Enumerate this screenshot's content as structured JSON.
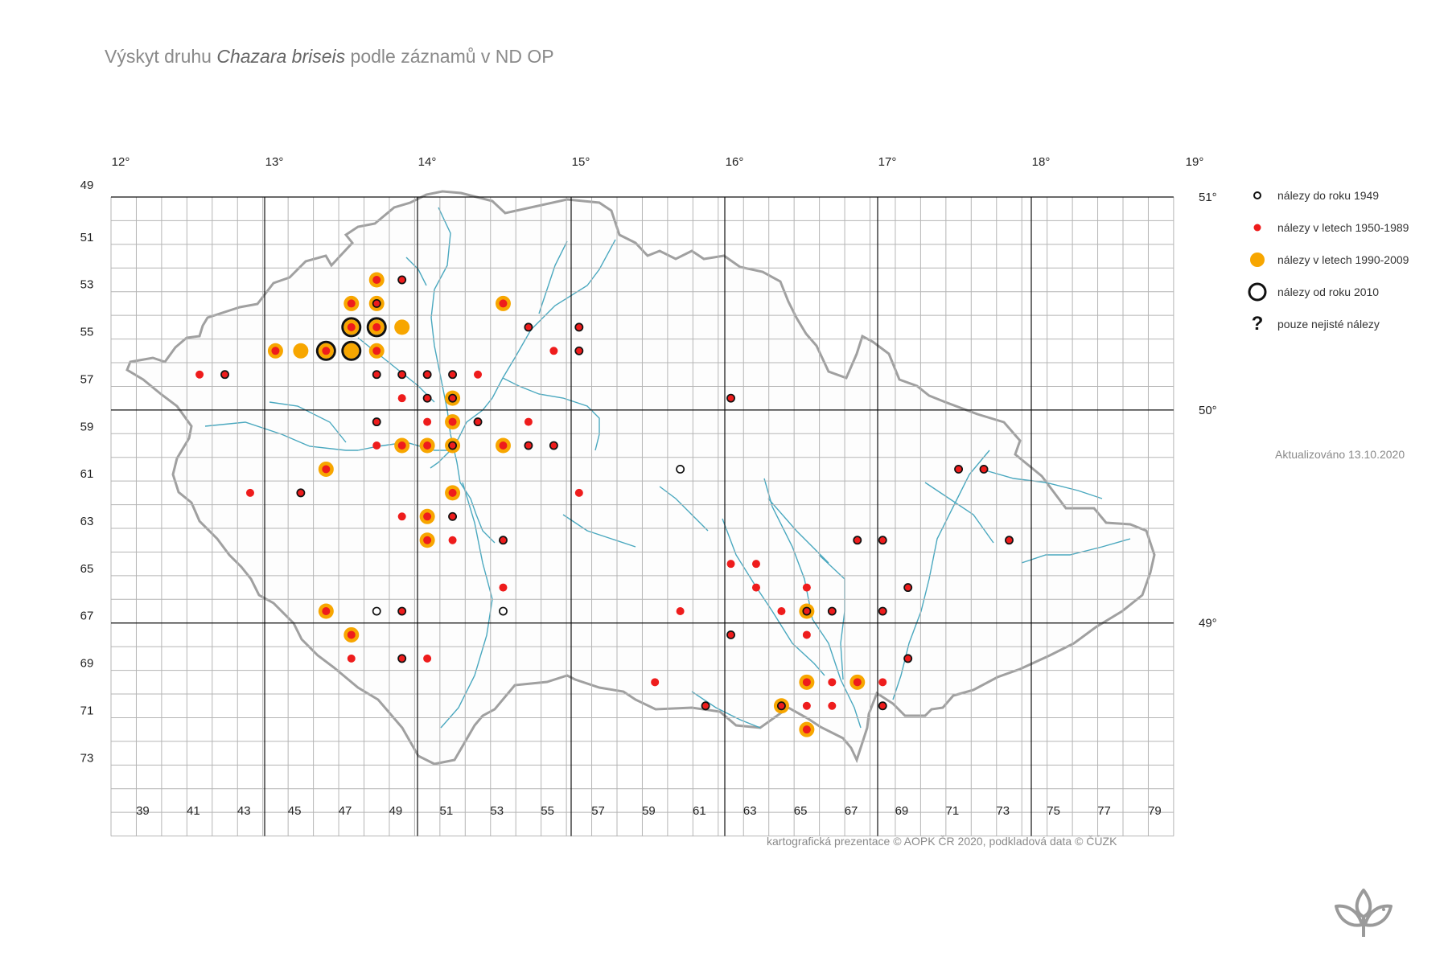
{
  "title": {
    "prefix": "Výskyt druhu ",
    "species": "Chazara briseis",
    "suffix": " podle záznamů v ND OP"
  },
  "longitude_labels": [
    "12°",
    "13°",
    "14°",
    "15°",
    "16°",
    "17°",
    "18°",
    "19°"
  ],
  "latitude_labels": [
    "51°",
    "50°",
    "49°"
  ],
  "grid_row_labels": [
    "49",
    "51",
    "53",
    "55",
    "57",
    "59",
    "61",
    "63",
    "65",
    "67",
    "69",
    "71",
    "73"
  ],
  "grid_col_labels": [
    "39",
    "41",
    "43",
    "45",
    "47",
    "49",
    "51",
    "53",
    "55",
    "57",
    "59",
    "61",
    "63",
    "65",
    "67",
    "69",
    "71",
    "73",
    "75",
    "77",
    "79"
  ],
  "legend": [
    {
      "symbol": "hollow-small",
      "label": "nálezy do roku 1949"
    },
    {
      "symbol": "red-dot",
      "label": "nálezy v letech 1950-1989"
    },
    {
      "symbol": "orange-dot",
      "label": "nálezy v letech 1990-2009"
    },
    {
      "symbol": "black-ring",
      "label": "nálezy od roku 2010"
    },
    {
      "symbol": "question",
      "label": "pouze nejisté nálezy"
    }
  ],
  "updated": "Aktualizováno 13.10.2020",
  "credit": "kartografická prezentace © AOPK ČR 2020, podkladová data © ČÚZK",
  "colors": {
    "red": "#ee1c1c",
    "orange": "#f7a600",
    "black": "#111111",
    "grid": "#b5b5b5",
    "river": "#4aa8bf",
    "border": "#a0a0a0"
  },
  "records": [
    {
      "grid": "4852",
      "periods": [
        "1990-2009",
        "1950-1989"
      ]
    },
    {
      "grid": "4952",
      "periods": [
        "1950-1989",
        "pre-1949"
      ]
    },
    {
      "grid": "4753",
      "periods": [
        "1990-2009",
        "1950-1989"
      ]
    },
    {
      "grid": "4853",
      "periods": [
        "1990-2009",
        "1950-1989",
        "pre-1949"
      ]
    },
    {
      "grid": "5353",
      "periods": [
        "1990-2009",
        "1950-1989"
      ]
    },
    {
      "grid": "4754",
      "periods": [
        "2010+",
        "1990-2009",
        "1950-1989"
      ]
    },
    {
      "grid": "4854",
      "periods": [
        "2010+",
        "1990-2009",
        "1950-1989"
      ]
    },
    {
      "grid": "4954",
      "periods": [
        "1990-2009"
      ]
    },
    {
      "grid": "5454",
      "periods": [
        "1950-1989",
        "pre-1949"
      ]
    },
    {
      "grid": "5654",
      "periods": [
        "1950-1989",
        "pre-1949"
      ]
    },
    {
      "grid": "4455",
      "periods": [
        "1990-2009",
        "1950-1989"
      ]
    },
    {
      "grid": "4555",
      "periods": [
        "1990-2009"
      ]
    },
    {
      "grid": "4655",
      "periods": [
        "2010+",
        "1990-2009",
        "1950-1989"
      ]
    },
    {
      "grid": "4755",
      "periods": [
        "2010+",
        "1990-2009"
      ]
    },
    {
      "grid": "4855",
      "periods": [
        "1990-2009",
        "1950-1989"
      ]
    },
    {
      "grid": "5555",
      "periods": [
        "1950-1989"
      ]
    },
    {
      "grid": "5655",
      "periods": [
        "1950-1989",
        "pre-1949"
      ]
    },
    {
      "grid": "4156",
      "periods": [
        "1950-1989"
      ]
    },
    {
      "grid": "4256",
      "periods": [
        "1950-1989",
        "pre-1949"
      ]
    },
    {
      "grid": "4856",
      "periods": [
        "1950-1989",
        "pre-1949"
      ]
    },
    {
      "grid": "4956",
      "periods": [
        "1950-1989",
        "pre-1949"
      ]
    },
    {
      "grid": "5056",
      "periods": [
        "1950-1989",
        "pre-1949"
      ]
    },
    {
      "grid": "5156",
      "periods": [
        "1950-1989",
        "pre-1949"
      ]
    },
    {
      "grid": "5256",
      "periods": [
        "1950-1989"
      ]
    },
    {
      "grid": "4957",
      "periods": [
        "1950-1989"
      ]
    },
    {
      "grid": "5057",
      "periods": [
        "1950-1989",
        "pre-1949"
      ]
    },
    {
      "grid": "5157",
      "periods": [
        "1990-2009",
        "1950-1989",
        "pre-1949"
      ]
    },
    {
      "grid": "6257",
      "periods": [
        "1950-1989",
        "pre-1949"
      ]
    },
    {
      "grid": "4858",
      "periods": [
        "1950-1989",
        "pre-1949"
      ]
    },
    {
      "grid": "5058",
      "periods": [
        "1950-1989"
      ]
    },
    {
      "grid": "5158",
      "periods": [
        "1990-2009",
        "1950-1989"
      ]
    },
    {
      "grid": "5258",
      "periods": [
        "1950-1989",
        "pre-1949"
      ]
    },
    {
      "grid": "5458",
      "periods": [
        "1950-1989"
      ]
    },
    {
      "grid": "4859",
      "periods": [
        "1950-1989"
      ]
    },
    {
      "grid": "4959",
      "periods": [
        "1990-2009",
        "1950-1989"
      ]
    },
    {
      "grid": "5059",
      "periods": [
        "1990-2009",
        "1950-1989"
      ]
    },
    {
      "grid": "5159",
      "periods": [
        "1990-2009",
        "1950-1989",
        "pre-1949"
      ]
    },
    {
      "grid": "5359",
      "periods": [
        "1990-2009",
        "1950-1989"
      ]
    },
    {
      "grid": "5459",
      "periods": [
        "1950-1989",
        "pre-1949"
      ]
    },
    {
      "grid": "5559",
      "periods": [
        "1950-1989",
        "pre-1949"
      ]
    },
    {
      "grid": "4660",
      "periods": [
        "1990-2009",
        "1950-1989"
      ]
    },
    {
      "grid": "6060",
      "periods": [
        "pre-1949"
      ]
    },
    {
      "grid": "7160",
      "periods": [
        "1950-1989",
        "pre-1949"
      ]
    },
    {
      "grid": "7260",
      "periods": [
        "1950-1989",
        "pre-1949"
      ]
    },
    {
      "grid": "4361",
      "periods": [
        "1950-1989"
      ]
    },
    {
      "grid": "4561",
      "periods": [
        "1950-1989",
        "pre-1949"
      ]
    },
    {
      "grid": "5161",
      "periods": [
        "1990-2009",
        "1950-1989"
      ]
    },
    {
      "grid": "5661",
      "periods": [
        "1950-1989"
      ]
    },
    {
      "grid": "4962",
      "periods": [
        "1950-1989"
      ]
    },
    {
      "grid": "5062",
      "periods": [
        "1990-2009",
        "1950-1989"
      ]
    },
    {
      "grid": "5162",
      "periods": [
        "1950-1989",
        "pre-1949"
      ]
    },
    {
      "grid": "5063",
      "periods": [
        "1990-2009",
        "1950-1989"
      ]
    },
    {
      "grid": "5163",
      "periods": [
        "1950-1989"
      ]
    },
    {
      "grid": "5363",
      "periods": [
        "1950-1989",
        "pre-1949"
      ]
    },
    {
      "grid": "6763",
      "periods": [
        "1950-1989",
        "pre-1949"
      ]
    },
    {
      "grid": "6863",
      "periods": [
        "1950-1989",
        "pre-1949"
      ]
    },
    {
      "grid": "7363",
      "periods": [
        "1950-1989",
        "pre-1949"
      ]
    },
    {
      "grid": "6264",
      "periods": [
        "1950-1989"
      ]
    },
    {
      "grid": "6364",
      "periods": [
        "1950-1989"
      ]
    },
    {
      "grid": "5365",
      "periods": [
        "1950-1989"
      ]
    },
    {
      "grid": "6365",
      "periods": [
        "1950-1989"
      ]
    },
    {
      "grid": "6565",
      "periods": [
        "1950-1989"
      ]
    },
    {
      "grid": "6965",
      "periods": [
        "1950-1989",
        "pre-1949"
      ]
    },
    {
      "grid": "4666",
      "periods": [
        "1990-2009",
        "1950-1989"
      ]
    },
    {
      "grid": "4866",
      "periods": [
        "pre-1949"
      ]
    },
    {
      "grid": "4966",
      "periods": [
        "1950-1989",
        "pre-1949"
      ]
    },
    {
      "grid": "5366",
      "periods": [
        "pre-1949"
      ]
    },
    {
      "grid": "6066",
      "periods": [
        "1950-1989"
      ]
    },
    {
      "grid": "6466",
      "periods": [
        "1950-1989"
      ]
    },
    {
      "grid": "6566",
      "periods": [
        "1990-2009",
        "1950-1989",
        "pre-1949"
      ]
    },
    {
      "grid": "6666",
      "periods": [
        "1950-1989",
        "pre-1949"
      ]
    },
    {
      "grid": "6866",
      "periods": [
        "1950-1989",
        "pre-1949"
      ]
    },
    {
      "grid": "4767",
      "periods": [
        "1990-2009",
        "1950-1989"
      ]
    },
    {
      "grid": "6267",
      "periods": [
        "1950-1989",
        "pre-1949"
      ]
    },
    {
      "grid": "6567",
      "periods": [
        "1950-1989"
      ]
    },
    {
      "grid": "4768",
      "periods": [
        "1950-1989"
      ]
    },
    {
      "grid": "4968",
      "periods": [
        "1950-1989",
        "pre-1949"
      ]
    },
    {
      "grid": "5068",
      "periods": [
        "1950-1989"
      ]
    },
    {
      "grid": "6968",
      "periods": [
        "1950-1989",
        "pre-1949"
      ]
    },
    {
      "grid": "5969",
      "periods": [
        "1950-1989"
      ]
    },
    {
      "grid": "6569",
      "periods": [
        "1990-2009",
        "1950-1989"
      ]
    },
    {
      "grid": "6669",
      "periods": [
        "1950-1989"
      ]
    },
    {
      "grid": "6769",
      "periods": [
        "1990-2009",
        "1950-1989"
      ]
    },
    {
      "grid": "6869",
      "periods": [
        "1950-1989"
      ]
    },
    {
      "grid": "6170",
      "periods": [
        "1950-1989",
        "pre-1949"
      ]
    },
    {
      "grid": "6470",
      "periods": [
        "1990-2009",
        "1950-1989",
        "pre-1949"
      ]
    },
    {
      "grid": "6570",
      "periods": [
        "1950-1989"
      ]
    },
    {
      "grid": "6670",
      "periods": [
        "1950-1989"
      ]
    },
    {
      "grid": "6870",
      "periods": [
        "1950-1989",
        "pre-1949"
      ]
    },
    {
      "grid": "6571",
      "periods": [
        "1990-2009",
        "1950-1989"
      ]
    }
  ]
}
